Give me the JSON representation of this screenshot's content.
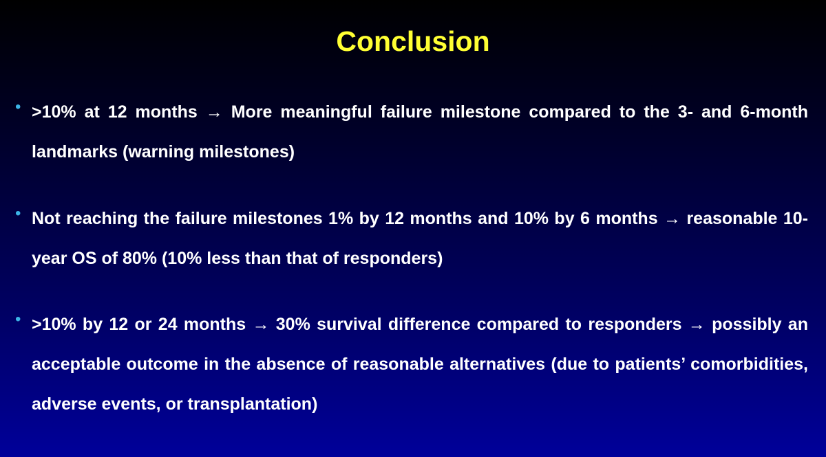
{
  "slide": {
    "title": "Conclusion",
    "bullets": [
      {
        "marker": "•",
        "text": ">10% at 12 months → More meaningful failure milestone compared to the 3- and 6-month landmarks (warning milestones)"
      },
      {
        "marker": "•",
        "text": "Not reaching the failure milestones 1% by 12 months and 10% by 6 months → reasonable 10-year OS of 80% (10% less than that of responders)"
      },
      {
        "marker": "•",
        "text": ">10% by 12 or 24 months → 30% survival difference compared to responders → possibly an acceptable outcome in the absence of reasonable alternatives (due to patients’ comorbidities, adverse events, or transplantation)"
      }
    ],
    "colors": {
      "title": "#ffff33",
      "bullet_marker": "#3cb4e6",
      "body_text": "#ffffff",
      "background_top": "#000000",
      "background_bottom": "#00009a"
    }
  }
}
